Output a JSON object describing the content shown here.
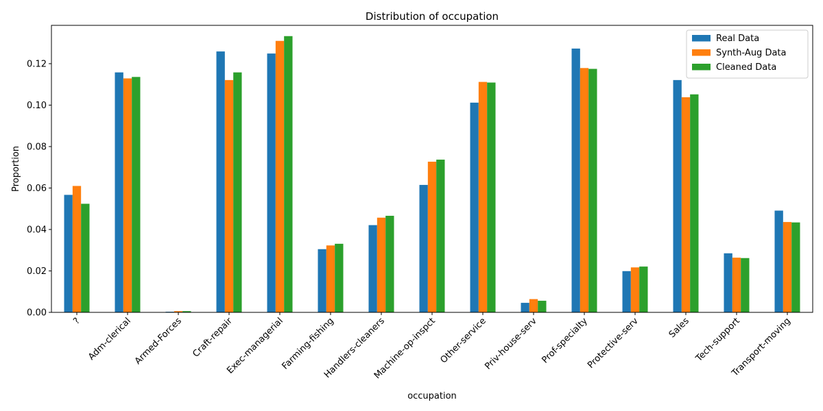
{
  "chart_data": {
    "type": "bar",
    "title": "Distribution of occupation",
    "xlabel": "occupation",
    "ylabel": "Proportion",
    "ylim": [
      0,
      0.1385
    ],
    "yticks": [
      0.0,
      0.02,
      0.04,
      0.06,
      0.08,
      0.1,
      0.12
    ],
    "ytick_labels": [
      "0.00",
      "0.02",
      "0.04",
      "0.06",
      "0.08",
      "0.10",
      "0.12"
    ],
    "grid": false,
    "legend_position": "top-right",
    "categories": [
      "?",
      "Adm-clerical",
      "Armed-Forces",
      "Craft-repair",
      "Exec-managerial",
      "Farming-fishing",
      "Handlers-cleaners",
      "Machine-op-inspct",
      "Other-service",
      "Priv-house-serv",
      "Prof-specialty",
      "Protective-serv",
      "Sales",
      "Tech-support",
      "Transport-moving"
    ],
    "series": [
      {
        "name": "Real Data",
        "color": "#1f77b4",
        "values": [
          0.0567,
          0.1158,
          0.0003,
          0.1259,
          0.1249,
          0.0305,
          0.0421,
          0.0615,
          0.1012,
          0.0046,
          0.1273,
          0.0199,
          0.1121,
          0.0285,
          0.0491
        ]
      },
      {
        "name": "Synth-Aug Data",
        "color": "#ff7f0e",
        "values": [
          0.061,
          0.1129,
          0.0006,
          0.1121,
          0.131,
          0.0323,
          0.0457,
          0.0727,
          0.1112,
          0.0064,
          0.1179,
          0.0217,
          0.1038,
          0.0264,
          0.0436
        ]
      },
      {
        "name": "Cleaned Data",
        "color": "#2ca02c",
        "values": [
          0.0524,
          0.1136,
          0.0006,
          0.1158,
          0.1333,
          0.0331,
          0.0466,
          0.0737,
          0.1109,
          0.0056,
          0.1175,
          0.0221,
          0.1052,
          0.0262,
          0.0434
        ]
      }
    ]
  }
}
